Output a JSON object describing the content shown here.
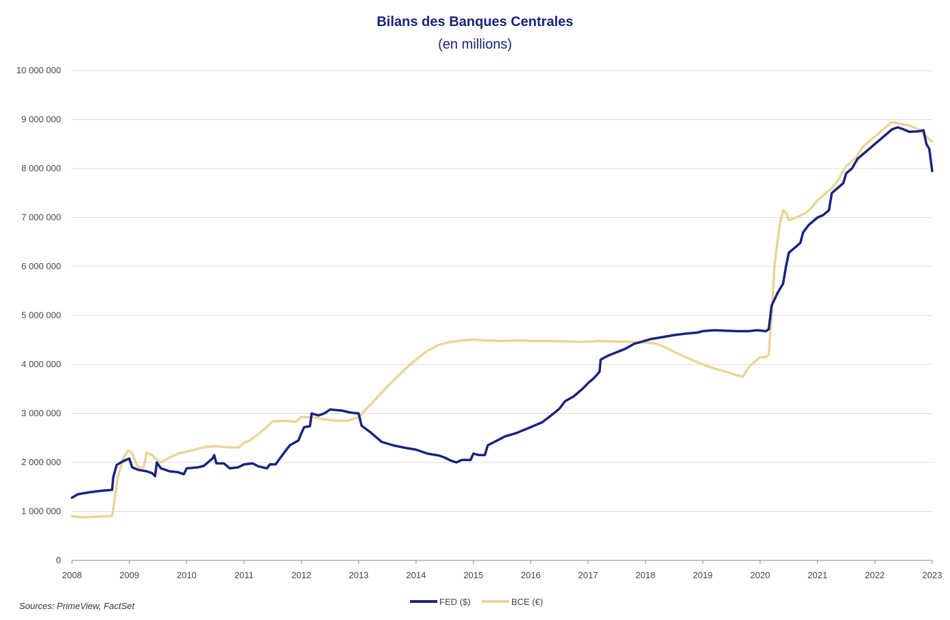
{
  "chart_data": {
    "type": "line",
    "title": "Bilans des Banques Centrales",
    "subtitle": "(en millions)",
    "xlabel": "",
    "ylabel": "",
    "xlim": [
      2008,
      2023
    ],
    "ylim": [
      0,
      10000000
    ],
    "x_ticks": [
      2008,
      2009,
      2010,
      2011,
      2012,
      2013,
      2014,
      2015,
      2016,
      2017,
      2018,
      2019,
      2020,
      2021,
      2022,
      2023
    ],
    "y_ticks": [
      0,
      1000000,
      2000000,
      3000000,
      4000000,
      5000000,
      6000000,
      7000000,
      8000000,
      9000000,
      10000000
    ],
    "y_tick_labels": [
      "0",
      "1 000 000",
      "2 000 000",
      "3 000 000",
      "4 000 000",
      "5 000 000",
      "6 000 000",
      "7 000 000",
      "8 000 000",
      "9 000 000",
      "10 000 000"
    ],
    "grid": "horizontal",
    "legend_position": "bottom-center",
    "series": [
      {
        "name": "FED ($)",
        "color": "#1a237e",
        "points": [
          [
            2008.0,
            1280000
          ],
          [
            2008.1,
            1350000
          ],
          [
            2008.3,
            1390000
          ],
          [
            2008.5,
            1420000
          ],
          [
            2008.7,
            1440000
          ],
          [
            2008.72,
            1700000
          ],
          [
            2008.78,
            1950000
          ],
          [
            2008.9,
            2030000
          ],
          [
            2009.0,
            2080000
          ],
          [
            2009.05,
            1900000
          ],
          [
            2009.15,
            1850000
          ],
          [
            2009.3,
            1820000
          ],
          [
            2009.4,
            1780000
          ],
          [
            2009.45,
            1720000
          ],
          [
            2009.48,
            2000000
          ],
          [
            2009.55,
            1880000
          ],
          [
            2009.7,
            1820000
          ],
          [
            2009.85,
            1800000
          ],
          [
            2009.95,
            1760000
          ],
          [
            2010.0,
            1880000
          ],
          [
            2010.2,
            1900000
          ],
          [
            2010.3,
            1930000
          ],
          [
            2010.45,
            2080000
          ],
          [
            2010.48,
            2150000
          ],
          [
            2010.52,
            1980000
          ],
          [
            2010.65,
            1980000
          ],
          [
            2010.75,
            1880000
          ],
          [
            2010.9,
            1900000
          ],
          [
            2011.0,
            1960000
          ],
          [
            2011.15,
            1980000
          ],
          [
            2011.25,
            1920000
          ],
          [
            2011.4,
            1880000
          ],
          [
            2011.45,
            1960000
          ],
          [
            2011.55,
            1960000
          ],
          [
            2011.7,
            2200000
          ],
          [
            2011.8,
            2350000
          ],
          [
            2011.95,
            2450000
          ],
          [
            2012.0,
            2600000
          ],
          [
            2012.05,
            2720000
          ],
          [
            2012.15,
            2740000
          ],
          [
            2012.18,
            3000000
          ],
          [
            2012.3,
            2960000
          ],
          [
            2012.4,
            3000000
          ],
          [
            2012.5,
            3080000
          ],
          [
            2012.7,
            3060000
          ],
          [
            2012.85,
            3020000
          ],
          [
            2013.0,
            3000000
          ],
          [
            2013.05,
            2750000
          ],
          [
            2013.2,
            2620000
          ],
          [
            2013.4,
            2420000
          ],
          [
            2013.6,
            2350000
          ],
          [
            2013.8,
            2300000
          ],
          [
            2014.0,
            2260000
          ],
          [
            2014.2,
            2180000
          ],
          [
            2014.4,
            2140000
          ],
          [
            2014.5,
            2100000
          ],
          [
            2014.6,
            2040000
          ],
          [
            2014.7,
            2000000
          ],
          [
            2014.8,
            2050000
          ],
          [
            2014.95,
            2050000
          ],
          [
            2015.0,
            2180000
          ],
          [
            2015.1,
            2150000
          ],
          [
            2015.2,
            2150000
          ],
          [
            2015.25,
            2350000
          ],
          [
            2015.45,
            2470000
          ],
          [
            2015.55,
            2530000
          ],
          [
            2015.75,
            2600000
          ],
          [
            2016.0,
            2720000
          ],
          [
            2016.2,
            2820000
          ],
          [
            2016.4,
            3000000
          ],
          [
            2016.5,
            3100000
          ],
          [
            2016.6,
            3250000
          ],
          [
            2016.75,
            3350000
          ],
          [
            2016.9,
            3500000
          ],
          [
            2017.0,
            3620000
          ],
          [
            2017.1,
            3720000
          ],
          [
            2017.2,
            3850000
          ],
          [
            2017.22,
            4100000
          ],
          [
            2017.35,
            4180000
          ],
          [
            2017.5,
            4250000
          ],
          [
            2017.65,
            4320000
          ],
          [
            2017.8,
            4420000
          ],
          [
            2017.95,
            4470000
          ],
          [
            2018.1,
            4520000
          ],
          [
            2018.3,
            4560000
          ],
          [
            2018.5,
            4600000
          ],
          [
            2018.7,
            4630000
          ],
          [
            2018.9,
            4650000
          ],
          [
            2019.0,
            4680000
          ],
          [
            2019.2,
            4700000
          ],
          [
            2019.4,
            4690000
          ],
          [
            2019.6,
            4680000
          ],
          [
            2019.8,
            4680000
          ],
          [
            2019.95,
            4700000
          ],
          [
            2020.1,
            4680000
          ],
          [
            2020.15,
            4720000
          ],
          [
            2020.2,
            5200000
          ],
          [
            2020.3,
            5450000
          ],
          [
            2020.4,
            5650000
          ],
          [
            2020.45,
            6000000
          ],
          [
            2020.5,
            6280000
          ],
          [
            2020.6,
            6380000
          ],
          [
            2020.7,
            6480000
          ],
          [
            2020.75,
            6700000
          ],
          [
            2020.85,
            6850000
          ],
          [
            2021.0,
            7000000
          ],
          [
            2021.1,
            7050000
          ],
          [
            2021.2,
            7150000
          ],
          [
            2021.25,
            7500000
          ],
          [
            2021.35,
            7600000
          ],
          [
            2021.45,
            7700000
          ],
          [
            2021.5,
            7900000
          ],
          [
            2021.6,
            8000000
          ],
          [
            2021.7,
            8200000
          ],
          [
            2021.8,
            8300000
          ],
          [
            2021.9,
            8400000
          ],
          [
            2022.0,
            8500000
          ],
          [
            2022.2,
            8700000
          ],
          [
            2022.3,
            8800000
          ],
          [
            2022.4,
            8840000
          ],
          [
            2022.5,
            8800000
          ],
          [
            2022.6,
            8750000
          ],
          [
            2022.75,
            8760000
          ],
          [
            2022.85,
            8780000
          ],
          [
            2022.9,
            8500000
          ],
          [
            2022.95,
            8400000
          ],
          [
            2023.0,
            7950000
          ]
        ]
      },
      {
        "name": "BCE (€)",
        "color": "#ead596",
        "points": [
          [
            2008.0,
            900000
          ],
          [
            2008.2,
            880000
          ],
          [
            2008.4,
            890000
          ],
          [
            2008.6,
            900000
          ],
          [
            2008.7,
            910000
          ],
          [
            2008.72,
            1050000
          ],
          [
            2008.8,
            1700000
          ],
          [
            2008.9,
            2100000
          ],
          [
            2008.98,
            2250000
          ],
          [
            2009.05,
            2180000
          ],
          [
            2009.15,
            1900000
          ],
          [
            2009.25,
            1900000
          ],
          [
            2009.3,
            2200000
          ],
          [
            2009.4,
            2150000
          ],
          [
            2009.45,
            2080000
          ],
          [
            2009.55,
            2000000
          ],
          [
            2009.7,
            2100000
          ],
          [
            2009.85,
            2180000
          ],
          [
            2010.0,
            2220000
          ],
          [
            2010.2,
            2280000
          ],
          [
            2010.35,
            2320000
          ],
          [
            2010.5,
            2330000
          ],
          [
            2010.7,
            2310000
          ],
          [
            2010.9,
            2300000
          ],
          [
            2011.0,
            2400000
          ],
          [
            2011.1,
            2450000
          ],
          [
            2011.25,
            2580000
          ],
          [
            2011.4,
            2720000
          ],
          [
            2011.5,
            2840000
          ],
          [
            2011.7,
            2850000
          ],
          [
            2011.9,
            2830000
          ],
          [
            2012.0,
            2930000
          ],
          [
            2012.2,
            2920000
          ],
          [
            2012.4,
            2880000
          ],
          [
            2012.6,
            2850000
          ],
          [
            2012.8,
            2850000
          ],
          [
            2013.0,
            2920000
          ],
          [
            2013.1,
            3050000
          ],
          [
            2013.3,
            3300000
          ],
          [
            2013.5,
            3550000
          ],
          [
            2013.7,
            3780000
          ],
          [
            2013.85,
            3950000
          ],
          [
            2014.0,
            4100000
          ],
          [
            2014.2,
            4280000
          ],
          [
            2014.4,
            4400000
          ],
          [
            2014.6,
            4460000
          ],
          [
            2014.8,
            4490000
          ],
          [
            2015.0,
            4510000
          ],
          [
            2015.2,
            4490000
          ],
          [
            2015.5,
            4480000
          ],
          [
            2015.8,
            4490000
          ],
          [
            2016.0,
            4480000
          ],
          [
            2016.3,
            4480000
          ],
          [
            2016.6,
            4470000
          ],
          [
            2016.9,
            4460000
          ],
          [
            2017.2,
            4480000
          ],
          [
            2017.5,
            4470000
          ],
          [
            2017.8,
            4460000
          ],
          [
            2018.0,
            4450000
          ],
          [
            2018.2,
            4420000
          ],
          [
            2018.4,
            4320000
          ],
          [
            2018.6,
            4200000
          ],
          [
            2018.8,
            4100000
          ],
          [
            2019.0,
            4000000
          ],
          [
            2019.2,
            3920000
          ],
          [
            2019.4,
            3850000
          ],
          [
            2019.6,
            3780000
          ],
          [
            2019.7,
            3750000
          ],
          [
            2019.8,
            3950000
          ],
          [
            2019.9,
            4050000
          ],
          [
            2020.0,
            4150000
          ],
          [
            2020.1,
            4150000
          ],
          [
            2020.15,
            4200000
          ],
          [
            2020.2,
            5000000
          ],
          [
            2020.25,
            6000000
          ],
          [
            2020.3,
            6500000
          ],
          [
            2020.35,
            6900000
          ],
          [
            2020.4,
            7150000
          ],
          [
            2020.45,
            7100000
          ],
          [
            2020.5,
            6950000
          ],
          [
            2020.6,
            6980000
          ],
          [
            2020.8,
            7100000
          ],
          [
            2020.9,
            7200000
          ],
          [
            2021.0,
            7350000
          ],
          [
            2021.1,
            7450000
          ],
          [
            2021.25,
            7600000
          ],
          [
            2021.35,
            7750000
          ],
          [
            2021.5,
            8050000
          ],
          [
            2021.65,
            8200000
          ],
          [
            2021.8,
            8450000
          ],
          [
            2022.0,
            8650000
          ],
          [
            2022.15,
            8800000
          ],
          [
            2022.3,
            8950000
          ],
          [
            2022.5,
            8900000
          ],
          [
            2022.6,
            8880000
          ],
          [
            2022.8,
            8780000
          ],
          [
            2022.9,
            8650000
          ],
          [
            2023.0,
            8550000
          ]
        ]
      }
    ]
  },
  "legend": {
    "fed_label": "FED ($)",
    "bce_label": "BCE (€)"
  },
  "source_note": "Sources: PrimeView, FactSet"
}
